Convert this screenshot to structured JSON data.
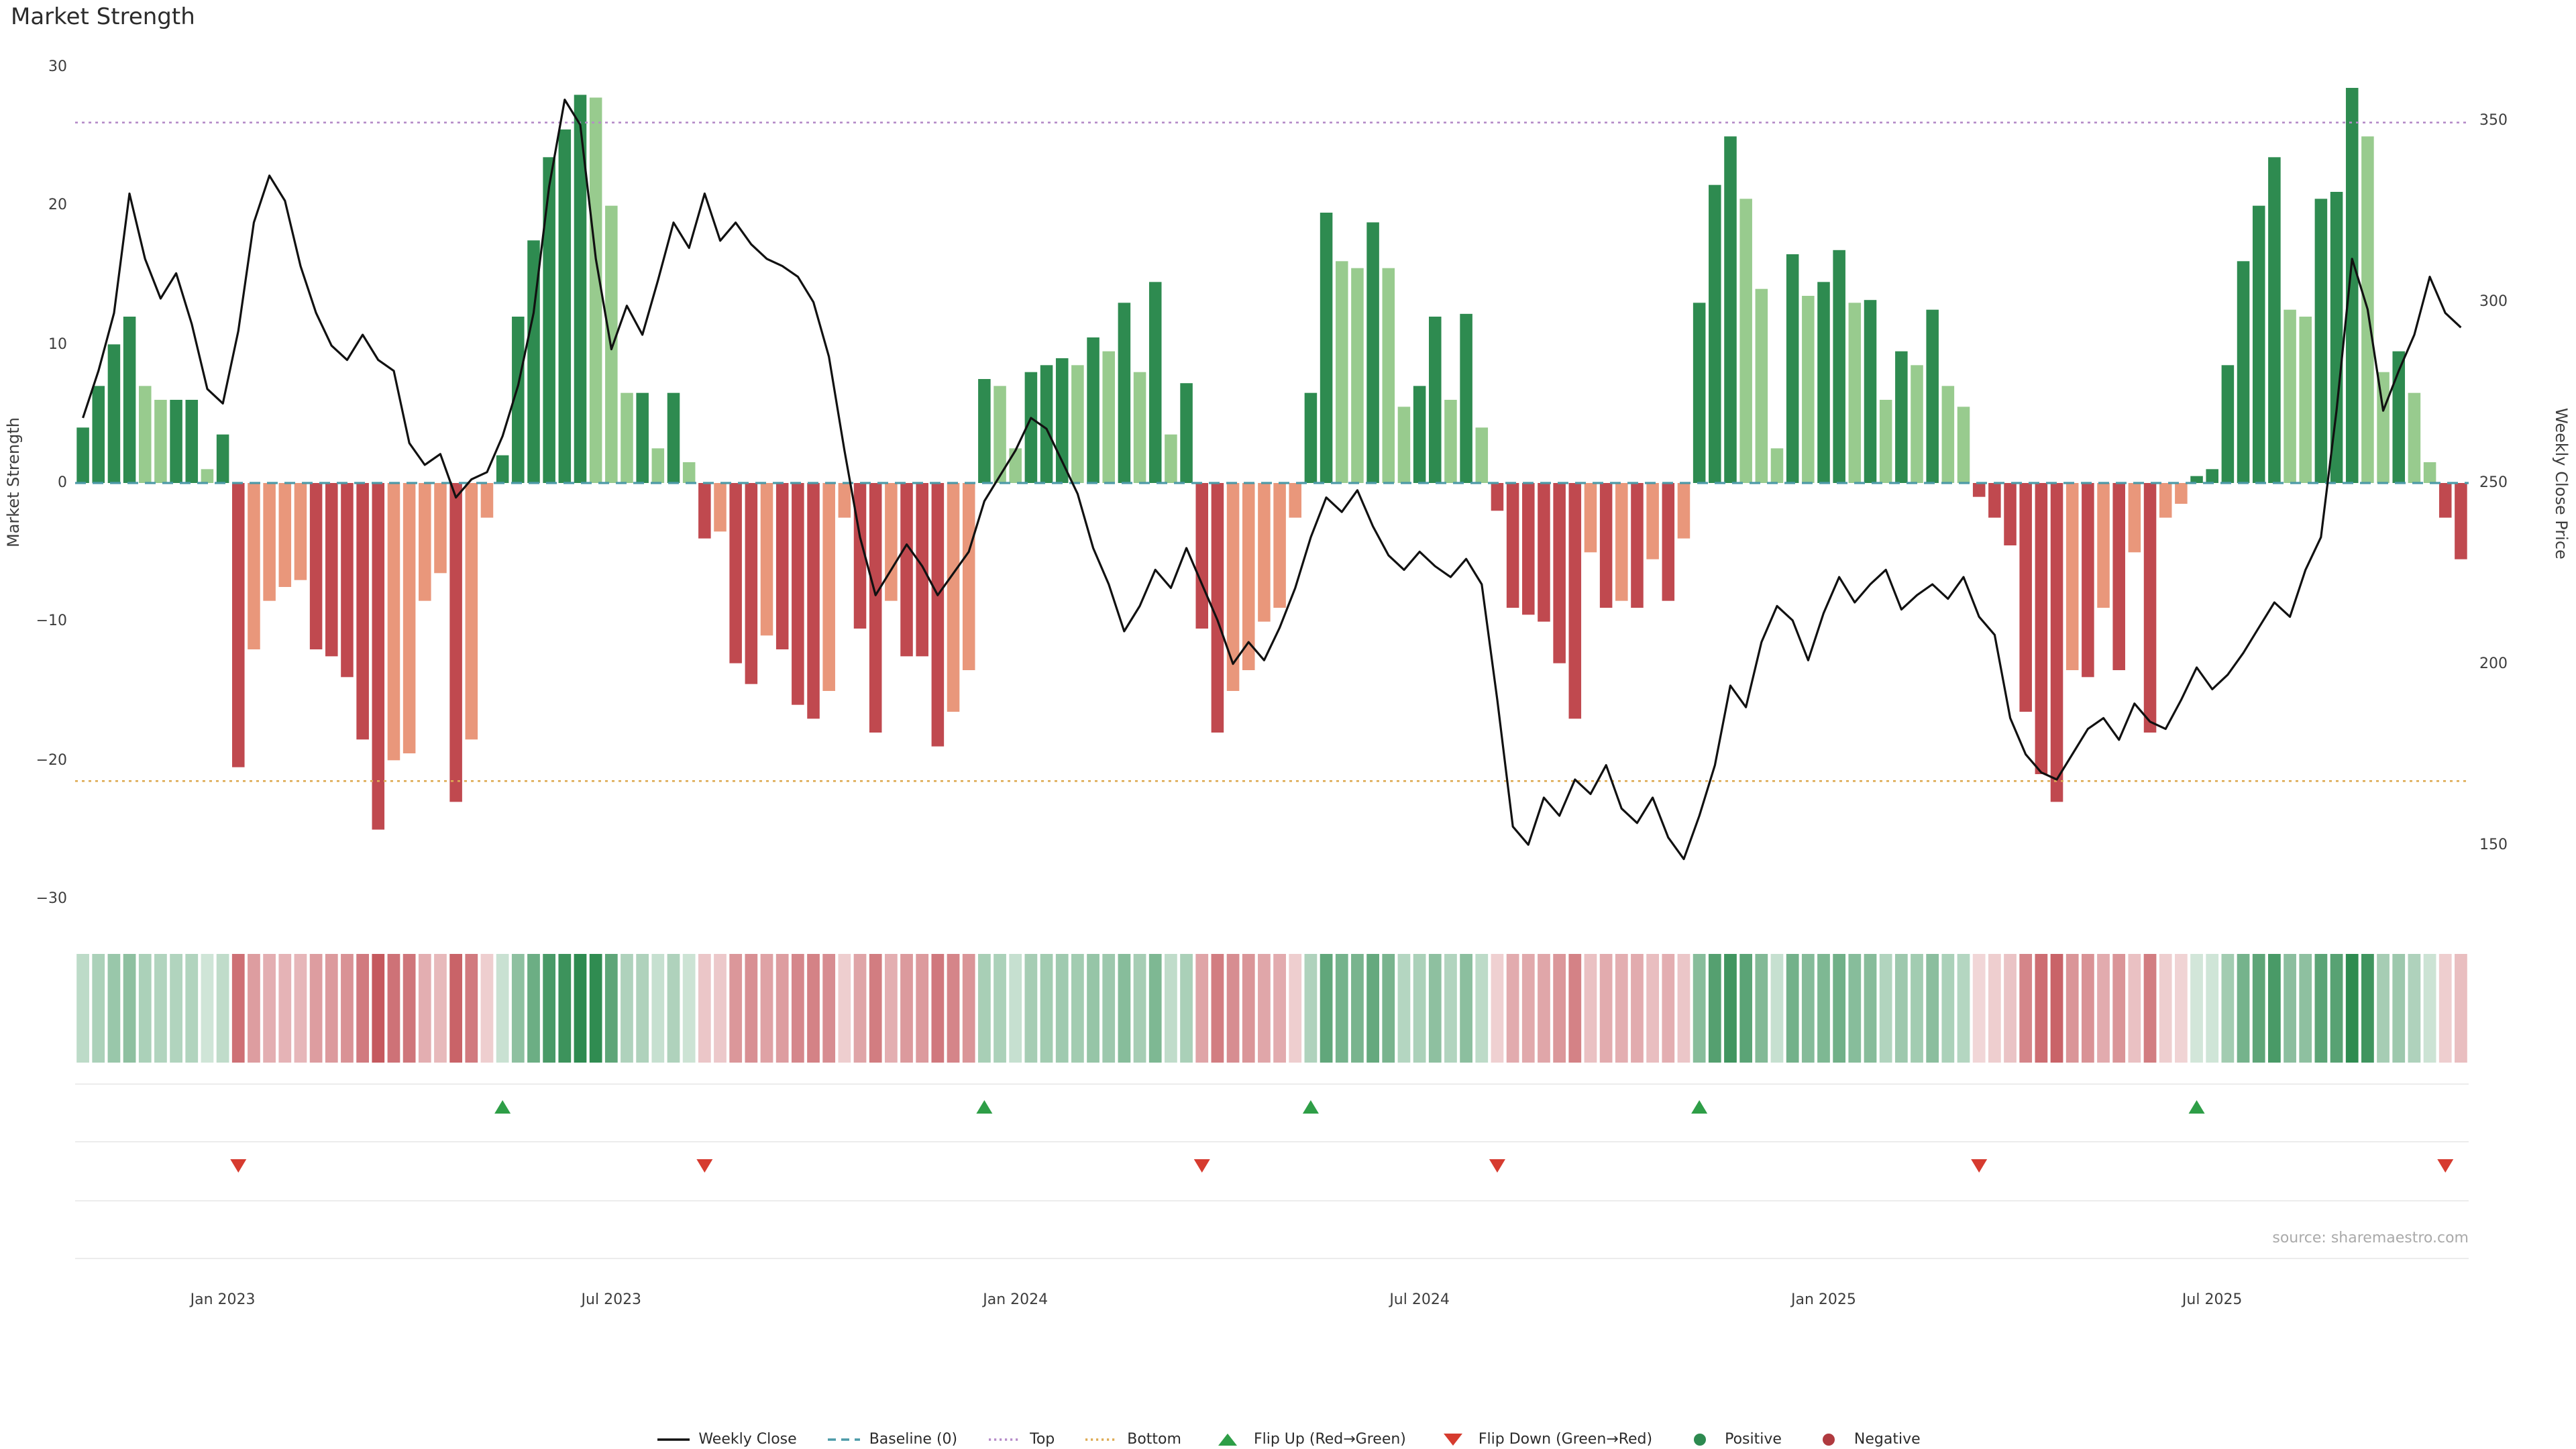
{
  "title": "Market Strength",
  "source": "source: sharemaestro.com",
  "axes": {
    "left_label": "Market Strength",
    "right_label": "Weekly Close Price",
    "left_ticks": [
      {
        "v": 30,
        "label": "30"
      },
      {
        "v": 20,
        "label": "20"
      },
      {
        "v": 10,
        "label": "10"
      },
      {
        "v": 0,
        "label": "0"
      },
      {
        "v": -10,
        "label": "−10"
      },
      {
        "v": -20,
        "label": "−20"
      },
      {
        "v": -30,
        "label": "−30"
      }
    ],
    "right_ticks": [
      {
        "v": 350,
        "label": "350"
      },
      {
        "v": 300,
        "label": "300"
      },
      {
        "v": 250,
        "label": "250"
      },
      {
        "v": 200,
        "label": "200"
      },
      {
        "v": 150,
        "label": "150"
      }
    ],
    "x_ticks": [
      {
        "index": 9,
        "label": "Jan 2023"
      },
      {
        "index": 34,
        "label": "Jul 2023"
      },
      {
        "index": 60,
        "label": "Jan 2024"
      },
      {
        "index": 86,
        "label": "Jul 2024"
      },
      {
        "index": 112,
        "label": "Jan 2025"
      },
      {
        "index": 137,
        "label": "Jul 2025"
      }
    ]
  },
  "reference_lines": {
    "baseline": {
      "label": "Baseline (0)",
      "value": 0
    },
    "top": {
      "label": "Top",
      "value": 26
    },
    "bottom": {
      "label": "Bottom",
      "value": -21.5
    }
  },
  "colors": {
    "positive_dark": "#2e8b50",
    "positive_light": "#98cb8e",
    "negative_dark": "#c0494f",
    "negative_light": "#e9977b",
    "line": "#111111",
    "baseline": "#4d9aa8",
    "top_line": "#b58bc8",
    "bottom_line": "#ddab54",
    "flip_up": "#2e9e47",
    "flip_down": "#d63b2f"
  },
  "legend": [
    {
      "label": "Weekly Close",
      "marker": "line",
      "color": "#111111"
    },
    {
      "label": "Baseline (0)",
      "marker": "dashed",
      "color": "#4d9aa8"
    },
    {
      "label": "Top",
      "marker": "dotted",
      "color": "#b58bc8"
    },
    {
      "label": "Bottom",
      "marker": "dotted",
      "color": "#ddab54"
    },
    {
      "label": "Flip Up (Red→Green)",
      "marker": "triangle-up",
      "color": "#2e9e47"
    },
    {
      "label": "Flip Down (Green→Red)",
      "marker": "triangle-down",
      "color": "#d63b2f"
    },
    {
      "label": "Positive",
      "marker": "circle",
      "color": "#2d8a50"
    },
    {
      "label": "Negative",
      "marker": "circle",
      "color": "#b03a3f"
    }
  ],
  "chart_data": {
    "type": "bar+line",
    "x_unit": "week",
    "left_ylabel": "Market Strength",
    "right_ylabel": "Weekly Close Price",
    "left_ylim": [
      -30,
      30
    ],
    "right_ylim": [
      135,
      365
    ],
    "grid": false,
    "legend_position": "bottom-center",
    "panels": [
      "strength-bars-with-price-line",
      "strength-heatmap-strip",
      "flip-marker-rows"
    ],
    "strength": [
      4,
      7,
      10,
      12,
      7,
      6,
      6,
      6,
      1,
      3.5,
      -20.5,
      -12,
      -8.5,
      -7.5,
      -7,
      -12,
      -12.5,
      -14,
      -18.5,
      -25,
      -20,
      -19.5,
      -8.5,
      -6.5,
      -23,
      -18.5,
      -2.5,
      2,
      12,
      17.5,
      23.5,
      25.5,
      28,
      27.8,
      20,
      6.5,
      6.5,
      2.5,
      6.5,
      1.5,
      -4,
      -3.5,
      -13,
      -14.5,
      -11,
      -12,
      -16,
      -17,
      -15,
      -2.5,
      -10.5,
      -18,
      -8.5,
      -12.5,
      -12.5,
      -19,
      -16.5,
      -13.5,
      7.5,
      7,
      2.5,
      8,
      8.5,
      9,
      8.5,
      10.5,
      9.5,
      13,
      8,
      14.5,
      3.5,
      7.2,
      -10.5,
      -18,
      -15,
      -13.5,
      -10,
      -9,
      -2.5,
      6.5,
      19.5,
      16,
      15.5,
      18.8,
      15.5,
      5.5,
      7,
      12,
      6,
      12.2,
      4,
      -2,
      -9,
      -9.5,
      -10,
      -13,
      -17,
      -5,
      -9,
      -8.5,
      -9,
      -5.5,
      -8.5,
      -4,
      13,
      21.5,
      25,
      20.5,
      14,
      2.5,
      16.5,
      13.5,
      14.5,
      16.8,
      13,
      13.2,
      6,
      9.5,
      8.5,
      12.5,
      7,
      5.5,
      -1,
      -2.5,
      -4.5,
      -16.5,
      -21,
      -23,
      -13.5,
      -14,
      -9,
      -13.5,
      -5,
      -18,
      -2.5,
      -1.5,
      0.5,
      1,
      8.5,
      16,
      20,
      23.5,
      12.5,
      12,
      20.5,
      21,
      28.5,
      25,
      8,
      9.5,
      6.5,
      1.5,
      -2.5,
      -5.5
    ],
    "weekly_close": [
      268,
      281,
      297,
      330,
      312,
      301,
      308,
      294,
      276,
      272,
      292,
      322,
      335,
      328,
      310,
      297,
      288,
      284,
      291,
      284,
      281,
      261,
      255,
      258,
      246,
      251,
      253,
      263,
      277,
      297,
      332,
      356,
      349,
      312,
      287,
      299,
      291,
      306,
      322,
      315,
      330,
      317,
      322,
      316,
      312,
      310,
      307,
      300,
      285,
      259,
      235,
      219,
      226,
      233,
      227,
      219,
      225,
      231,
      245,
      252,
      259,
      268,
      265,
      256,
      247,
      232,
      222,
      209,
      216,
      226,
      221,
      232,
      222,
      212,
      200,
      206,
      201,
      210,
      221,
      235,
      246,
      242,
      248,
      238,
      230,
      226,
      231,
      227,
      224,
      229,
      222,
      190,
      155,
      150,
      163,
      158,
      168,
      164,
      172,
      160,
      156,
      163,
      152,
      146,
      158,
      172,
      194,
      188,
      206,
      216,
      212,
      201,
      214,
      224,
      217,
      222,
      226,
      215,
      219,
      222,
      218,
      224,
      213,
      208,
      185,
      175,
      170,
      168,
      175,
      182,
      185,
      179,
      189,
      184,
      182,
      190,
      199,
      193,
      197,
      203,
      210,
      217,
      213,
      226,
      235,
      270,
      312,
      298,
      270,
      281,
      291,
      307,
      297,
      293
    ],
    "flip_up_indices": [
      27,
      58,
      79,
      104,
      136
    ],
    "flip_down_indices": [
      10,
      40,
      72,
      91,
      122,
      152
    ],
    "series_names": {
      "bars": "Market Strength",
      "line": "Weekly Close",
      "heatmap": "Strength heat strip",
      "flip_up": "Flip Up (Red→Green)",
      "flip_down": "Flip Down (Green→Red)"
    }
  }
}
